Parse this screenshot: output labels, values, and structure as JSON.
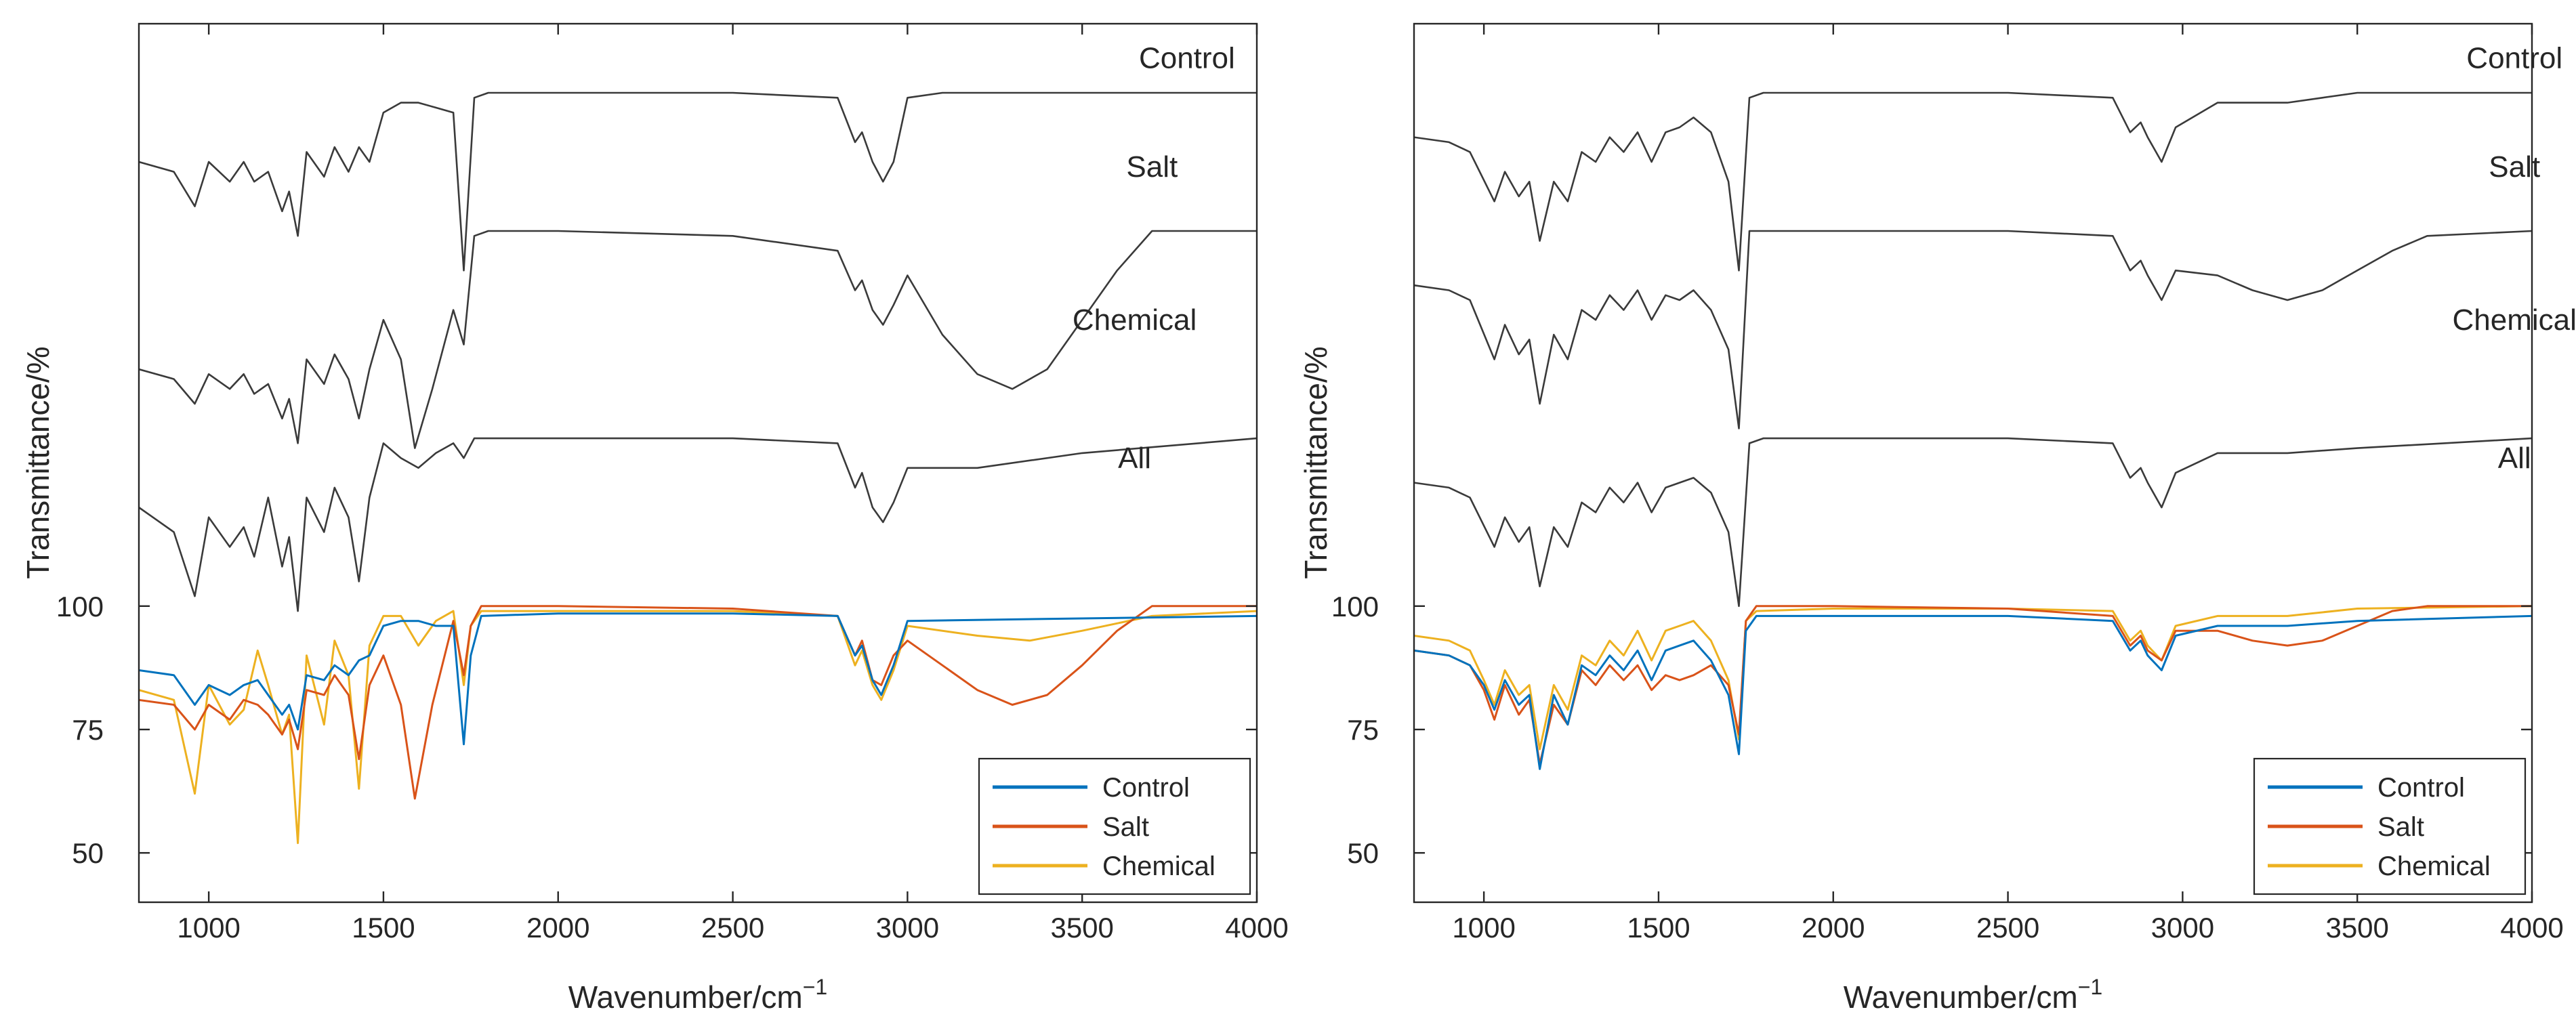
{
  "chart_data": [
    {
      "type": "line",
      "panel": "left",
      "xlabel": "Wavenumber/cm",
      "xlabel_sup": "−1",
      "ylabel": "Transmittance/%",
      "xlim": [
        800,
        4000
      ],
      "ylim": [
        40,
        218
      ],
      "xticks": [
        "1000",
        "1500",
        "2000",
        "2500",
        "3000",
        "3500",
        "4000"
      ],
      "yticks": [
        "50",
        "75",
        "100"
      ],
      "stack_labels": [
        "Control",
        "Salt",
        "Chemical",
        "All"
      ],
      "legend": [
        "Control",
        "Salt",
        "Chemical"
      ],
      "legend_position": "bottom-right",
      "colors": {
        "Control": "#0072BD",
        "Salt": "#D95319",
        "Chemical": "#EDB120",
        "stack": "#3a3a3a"
      },
      "stacked_traces": [
        {
          "name": "Control",
          "offset": 0,
          "x": [
            800,
            900,
            960,
            1000,
            1060,
            1100,
            1130,
            1170,
            1210,
            1230,
            1255,
            1280,
            1330,
            1360,
            1400,
            1430,
            1460,
            1500,
            1550,
            1600,
            1650,
            1700,
            1730,
            1760,
            1800,
            1900,
            2000,
            2500,
            2800,
            2850,
            2870,
            2900,
            2930,
            2960,
            3000,
            3100,
            3500,
            4000
          ],
          "y": [
            190,
            188,
            181,
            190,
            186,
            190,
            186,
            188,
            180,
            184,
            175,
            192,
            187,
            193,
            188,
            193,
            190,
            200,
            202,
            202,
            201,
            200,
            168,
            203,
            204,
            204,
            204,
            204,
            203,
            194,
            196,
            190,
            186,
            190,
            203,
            204,
            204,
            204
          ]
        },
        {
          "name": "Salt",
          "offset": 0,
          "x": [
            800,
            900,
            960,
            1000,
            1060,
            1100,
            1130,
            1170,
            1210,
            1230,
            1255,
            1280,
            1330,
            1360,
            1400,
            1430,
            1460,
            1500,
            1550,
            1590,
            1640,
            1700,
            1730,
            1760,
            1800,
            1900,
            2000,
            2500,
            2800,
            2850,
            2870,
            2900,
            2930,
            2960,
            3000,
            3100,
            3200,
            3300,
            3400,
            3500,
            3600,
            3700,
            4000
          ],
          "y": [
            148,
            146,
            141,
            147,
            144,
            147,
            143,
            145,
            138,
            142,
            133,
            150,
            145,
            151,
            146,
            138,
            148,
            158,
            150,
            132,
            144,
            160,
            153,
            175,
            176,
            176,
            176,
            175,
            172,
            164,
            166,
            160,
            157,
            161,
            167,
            155,
            147,
            144,
            148,
            158,
            168,
            176,
            176
          ]
        },
        {
          "name": "Chemical",
          "offset": 0,
          "x": [
            800,
            900,
            960,
            1000,
            1060,
            1100,
            1130,
            1170,
            1210,
            1230,
            1255,
            1280,
            1330,
            1360,
            1400,
            1430,
            1460,
            1500,
            1550,
            1600,
            1650,
            1700,
            1730,
            1760,
            1800,
            1900,
            2000,
            2500,
            2800,
            2850,
            2870,
            2900,
            2930,
            2960,
            3000,
            3200,
            3500,
            4000
          ],
          "y": [
            120,
            115,
            102,
            118,
            112,
            116,
            110,
            122,
            108,
            114,
            99,
            122,
            115,
            124,
            118,
            105,
            122,
            133,
            130,
            128,
            131,
            133,
            130,
            134,
            134,
            134,
            134,
            134,
            133,
            124,
            127,
            120,
            117,
            121,
            128,
            128,
            131,
            134
          ]
        }
      ],
      "series": [
        {
          "name": "Control",
          "x": [
            800,
            900,
            960,
            1000,
            1060,
            1100,
            1140,
            1170,
            1210,
            1230,
            1255,
            1280,
            1330,
            1360,
            1400,
            1430,
            1460,
            1500,
            1550,
            1600,
            1650,
            1700,
            1730,
            1750,
            1780,
            2000,
            2500,
            2800,
            2850,
            2870,
            2900,
            2925,
            2960,
            3000,
            3500,
            4000
          ],
          "y": [
            87,
            86,
            80,
            84,
            82,
            84,
            85,
            82,
            78,
            80,
            75,
            86,
            85,
            88,
            86,
            89,
            90,
            96,
            97,
            97,
            96,
            96,
            72,
            90,
            98,
            98.5,
            98.5,
            98,
            90,
            92,
            85,
            82,
            88,
            97,
            97.5,
            98
          ]
        },
        {
          "name": "Salt",
          "x": [
            800,
            900,
            960,
            1000,
            1060,
            1100,
            1140,
            1170,
            1210,
            1230,
            1255,
            1280,
            1330,
            1360,
            1400,
            1430,
            1460,
            1500,
            1550,
            1590,
            1640,
            1700,
            1730,
            1750,
            1780,
            2000,
            2500,
            2800,
            2850,
            2870,
            2900,
            2925,
            2960,
            3000,
            3100,
            3200,
            3300,
            3400,
            3500,
            3600,
            3700,
            4000
          ],
          "y": [
            81,
            80,
            75,
            80,
            77,
            81,
            80,
            78,
            74,
            77,
            71,
            83,
            82,
            86,
            82,
            69,
            84,
            90,
            80,
            61,
            80,
            97,
            86,
            96,
            100,
            100,
            99.5,
            98,
            90,
            93,
            85,
            84,
            90,
            93,
            88,
            83,
            80,
            82,
            88,
            95,
            100,
            100
          ]
        },
        {
          "name": "Chemical",
          "x": [
            800,
            900,
            960,
            1000,
            1060,
            1100,
            1140,
            1170,
            1210,
            1230,
            1255,
            1280,
            1330,
            1360,
            1400,
            1430,
            1460,
            1500,
            1550,
            1600,
            1650,
            1700,
            1730,
            1750,
            1780,
            2000,
            2500,
            2800,
            2850,
            2870,
            2900,
            2925,
            2960,
            3000,
            3200,
            3350,
            3500,
            3700,
            4000
          ],
          "y": [
            83,
            81,
            62,
            84,
            76,
            79,
            91,
            84,
            74,
            78,
            52,
            90,
            76,
            93,
            86,
            63,
            92,
            98,
            98,
            92,
            97,
            99,
            84,
            96,
            99,
            99,
            99,
            98,
            88,
            91,
            84,
            81,
            87,
            96,
            94,
            93,
            95,
            98,
            99
          ]
        }
      ]
    },
    {
      "type": "line",
      "panel": "right",
      "xlabel": "Wavenumber/cm",
      "xlabel_sup": "−1",
      "ylabel": "Transmittance/%",
      "xlim": [
        800,
        4000
      ],
      "ylim": [
        40,
        218
      ],
      "xticks": [
        "1000",
        "1500",
        "2000",
        "2500",
        "3000",
        "3500",
        "4000"
      ],
      "yticks": [
        "50",
        "75",
        "100"
      ],
      "stack_labels": [
        "Control",
        "Salt",
        "Chemical",
        "All"
      ],
      "legend": [
        "Control",
        "Salt",
        "Chemical"
      ],
      "legend_position": "bottom-right",
      "colors": {
        "Control": "#0072BD",
        "Salt": "#D95319",
        "Chemical": "#EDB120",
        "stack": "#3a3a3a"
      },
      "stacked_traces": [
        {
          "name": "Control",
          "offset": 0,
          "x": [
            800,
            900,
            960,
            1030,
            1060,
            1100,
            1130,
            1160,
            1200,
            1240,
            1280,
            1320,
            1360,
            1400,
            1440,
            1480,
            1520,
            1560,
            1600,
            1650,
            1700,
            1730,
            1760,
            1800,
            2000,
            2500,
            2800,
            2850,
            2880,
            2900,
            2940,
            2980,
            3100,
            3300,
            3400,
            3500,
            4000
          ],
          "y": [
            195,
            194,
            192,
            182,
            188,
            183,
            186,
            174,
            186,
            182,
            192,
            190,
            195,
            192,
            196,
            190,
            196,
            197,
            199,
            196,
            186,
            168,
            203,
            204,
            204,
            204,
            203,
            196,
            198,
            195,
            190,
            197,
            202,
            202,
            203,
            204,
            204
          ]
        },
        {
          "name": "Salt",
          "offset": 0,
          "x": [
            800,
            900,
            960,
            1030,
            1060,
            1100,
            1130,
            1160,
            1200,
            1240,
            1280,
            1320,
            1360,
            1400,
            1440,
            1480,
            1520,
            1560,
            1600,
            1650,
            1700,
            1730,
            1760,
            1800,
            2000,
            2500,
            2800,
            2850,
            2880,
            2900,
            2940,
            2980,
            3100,
            3200,
            3300,
            3400,
            3500,
            3600,
            3700,
            4000
          ],
          "y": [
            165,
            164,
            162,
            150,
            157,
            151,
            154,
            141,
            155,
            150,
            160,
            158,
            163,
            160,
            164,
            158,
            163,
            162,
            164,
            160,
            152,
            136,
            176,
            176,
            176,
            176,
            175,
            168,
            170,
            167,
            162,
            168,
            167,
            164,
            162,
            164,
            168,
            172,
            175,
            176
          ]
        },
        {
          "name": "Chemical",
          "offset": 0,
          "x": [
            800,
            900,
            960,
            1030,
            1060,
            1100,
            1130,
            1160,
            1200,
            1240,
            1280,
            1320,
            1360,
            1400,
            1440,
            1480,
            1520,
            1560,
            1600,
            1650,
            1700,
            1730,
            1760,
            1800,
            2000,
            2500,
            2800,
            2850,
            2880,
            2900,
            2940,
            2980,
            3100,
            3300,
            3500,
            4000
          ],
          "y": [
            125,
            124,
            122,
            112,
            118,
            113,
            116,
            104,
            116,
            112,
            121,
            119,
            124,
            121,
            125,
            119,
            124,
            125,
            126,
            123,
            115,
            100,
            133,
            134,
            134,
            134,
            133,
            126,
            128,
            125,
            120,
            127,
            131,
            131,
            132,
            134
          ]
        }
      ],
      "series": [
        {
          "name": "Control",
          "x": [
            800,
            900,
            960,
            1000,
            1030,
            1060,
            1100,
            1130,
            1160,
            1200,
            1240,
            1280,
            1320,
            1360,
            1400,
            1440,
            1480,
            1520,
            1560,
            1600,
            1650,
            1700,
            1730,
            1750,
            1780,
            2000,
            2500,
            2800,
            2850,
            2880,
            2900,
            2940,
            2980,
            3100,
            3300,
            3500,
            4000
          ],
          "y": [
            91,
            90,
            88,
            84,
            79,
            85,
            80,
            82,
            67,
            82,
            76,
            88,
            86,
            90,
            87,
            91,
            85,
            91,
            92,
            93,
            89,
            82,
            70,
            95,
            98,
            98,
            98,
            97,
            91,
            93,
            90,
            87,
            94,
            96,
            96,
            97,
            98
          ]
        },
        {
          "name": "Salt",
          "x": [
            800,
            900,
            960,
            1000,
            1030,
            1060,
            1100,
            1130,
            1160,
            1200,
            1240,
            1280,
            1320,
            1360,
            1400,
            1440,
            1480,
            1520,
            1560,
            1600,
            1650,
            1700,
            1730,
            1750,
            1780,
            2000,
            2500,
            2800,
            2850,
            2880,
            2900,
            2940,
            2980,
            3100,
            3200,
            3300,
            3400,
            3500,
            3600,
            3700,
            4000
          ],
          "y": [
            91,
            90,
            88,
            83,
            77,
            84,
            78,
            81,
            68,
            80,
            76,
            87,
            84,
            88,
            85,
            88,
            83,
            86,
            85,
            86,
            88,
            84,
            74,
            97,
            100,
            100,
            99.5,
            98,
            92,
            94,
            91,
            89,
            95,
            95,
            93,
            92,
            93,
            96,
            99,
            100,
            100
          ]
        },
        {
          "name": "Chemical",
          "x": [
            800,
            900,
            960,
            1000,
            1030,
            1060,
            1100,
            1130,
            1160,
            1200,
            1240,
            1280,
            1320,
            1360,
            1400,
            1440,
            1480,
            1520,
            1560,
            1600,
            1650,
            1700,
            1730,
            1750,
            1780,
            2000,
            2500,
            2800,
            2850,
            2880,
            2900,
            2940,
            2980,
            3100,
            3300,
            3500,
            4000
          ],
          "y": [
            94,
            93,
            91,
            85,
            80,
            87,
            82,
            84,
            71,
            84,
            79,
            90,
            88,
            93,
            90,
            95,
            89,
            95,
            96,
            97,
            93,
            85,
            73,
            97,
            99,
            99.5,
            99.5,
            99,
            93,
            95,
            92,
            89,
            96,
            98,
            98,
            99.5,
            100
          ]
        }
      ]
    }
  ]
}
